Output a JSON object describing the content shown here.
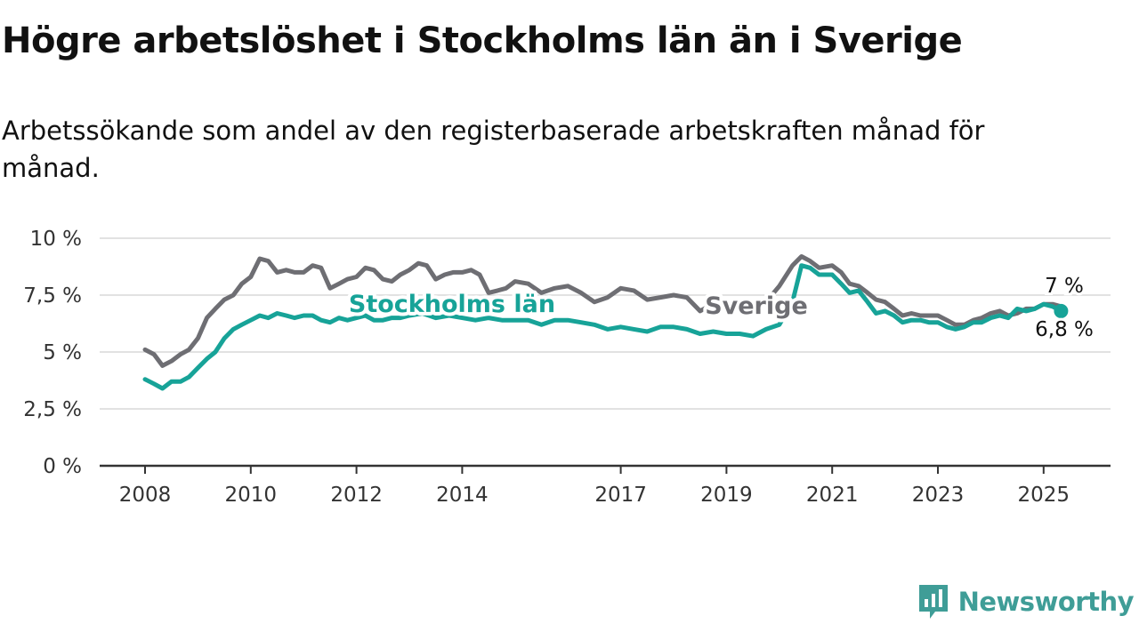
{
  "title": "Högre arbetslöshet i Stockholms län än i Sverige",
  "subtitle": "Arbetssökande som andel av den registerbaserade arbetskraften månad för månad.",
  "brand": {
    "name": "Newsworthy",
    "icon": "newsworthy-logo-icon",
    "color": "#3f9d97"
  },
  "chart_data": {
    "type": "line",
    "ylim": [
      0,
      10
    ],
    "xlim": [
      2008,
      2026.25
    ],
    "yticks": [
      0,
      2.5,
      5,
      7.5,
      10
    ],
    "ytick_labels": [
      "0 %",
      "2,5 %",
      "5 %",
      "7,5 %",
      "10 %"
    ],
    "xticks": [
      2008,
      2010,
      2012,
      2014,
      2017,
      2019,
      2021,
      2023,
      2025
    ],
    "xtick_labels": [
      "2008",
      "2010",
      "2012",
      "2014",
      "2017",
      "2019",
      "2021",
      "2023",
      "2025"
    ],
    "grid": true,
    "series": [
      {
        "name": "Sverige",
        "color": "#6e6e73",
        "end_label": "7 %",
        "points": [
          [
            2008.0,
            5.1
          ],
          [
            2008.17,
            4.9
          ],
          [
            2008.33,
            4.4
          ],
          [
            2008.5,
            4.6
          ],
          [
            2008.67,
            4.9
          ],
          [
            2008.83,
            5.1
          ],
          [
            2009.0,
            5.6
          ],
          [
            2009.17,
            6.5
          ],
          [
            2009.33,
            6.9
          ],
          [
            2009.5,
            7.3
          ],
          [
            2009.67,
            7.5
          ],
          [
            2009.83,
            8.0
          ],
          [
            2010.0,
            8.3
          ],
          [
            2010.17,
            9.1
          ],
          [
            2010.33,
            9.0
          ],
          [
            2010.5,
            8.5
          ],
          [
            2010.67,
            8.6
          ],
          [
            2010.83,
            8.5
          ],
          [
            2011.0,
            8.5
          ],
          [
            2011.17,
            8.8
          ],
          [
            2011.33,
            8.7
          ],
          [
            2011.5,
            7.8
          ],
          [
            2011.67,
            8.0
          ],
          [
            2011.83,
            8.2
          ],
          [
            2012.0,
            8.3
          ],
          [
            2012.17,
            8.7
          ],
          [
            2012.33,
            8.6
          ],
          [
            2012.5,
            8.2
          ],
          [
            2012.67,
            8.1
          ],
          [
            2012.83,
            8.4
          ],
          [
            2013.0,
            8.6
          ],
          [
            2013.17,
            8.9
          ],
          [
            2013.33,
            8.8
          ],
          [
            2013.5,
            8.2
          ],
          [
            2013.67,
            8.4
          ],
          [
            2013.83,
            8.5
          ],
          [
            2014.0,
            8.5
          ],
          [
            2014.17,
            8.6
          ],
          [
            2014.33,
            8.4
          ],
          [
            2014.5,
            7.6
          ],
          [
            2014.67,
            7.7
          ],
          [
            2014.83,
            7.8
          ],
          [
            2015.0,
            8.1
          ],
          [
            2015.25,
            8.0
          ],
          [
            2015.5,
            7.6
          ],
          [
            2015.75,
            7.8
          ],
          [
            2016.0,
            7.9
          ],
          [
            2016.25,
            7.6
          ],
          [
            2016.5,
            7.2
          ],
          [
            2016.75,
            7.4
          ],
          [
            2017.0,
            7.8
          ],
          [
            2017.25,
            7.7
          ],
          [
            2017.5,
            7.3
          ],
          [
            2017.75,
            7.4
          ],
          [
            2018.0,
            7.5
          ],
          [
            2018.25,
            7.4
          ],
          [
            2018.5,
            6.8
          ],
          [
            2018.75,
            7.1
          ],
          [
            2019.0,
            7.2
          ],
          [
            2019.25,
            7.0
          ],
          [
            2019.5,
            6.8
          ],
          [
            2019.75,
            7.2
          ],
          [
            2020.0,
            7.9
          ],
          [
            2020.25,
            8.8
          ],
          [
            2020.42,
            9.2
          ],
          [
            2020.58,
            9.0
          ],
          [
            2020.75,
            8.7
          ],
          [
            2021.0,
            8.8
          ],
          [
            2021.17,
            8.5
          ],
          [
            2021.33,
            8.0
          ],
          [
            2021.5,
            7.9
          ],
          [
            2021.67,
            7.6
          ],
          [
            2021.83,
            7.3
          ],
          [
            2022.0,
            7.2
          ],
          [
            2022.17,
            6.9
          ],
          [
            2022.33,
            6.6
          ],
          [
            2022.5,
            6.7
          ],
          [
            2022.67,
            6.6
          ],
          [
            2022.83,
            6.6
          ],
          [
            2023.0,
            6.6
          ],
          [
            2023.17,
            6.4
          ],
          [
            2023.33,
            6.2
          ],
          [
            2023.5,
            6.2
          ],
          [
            2023.67,
            6.4
          ],
          [
            2023.83,
            6.5
          ],
          [
            2024.0,
            6.7
          ],
          [
            2024.17,
            6.8
          ],
          [
            2024.33,
            6.6
          ],
          [
            2024.5,
            6.7
          ],
          [
            2024.67,
            6.9
          ],
          [
            2024.83,
            6.9
          ],
          [
            2025.0,
            7.1
          ],
          [
            2025.17,
            7.1
          ],
          [
            2025.33,
            7.0
          ]
        ]
      },
      {
        "name": "Stockholms län",
        "color": "#17a398",
        "end_label": "6,8 %",
        "points": [
          [
            2008.0,
            3.8
          ],
          [
            2008.17,
            3.6
          ],
          [
            2008.33,
            3.4
          ],
          [
            2008.5,
            3.7
          ],
          [
            2008.67,
            3.7
          ],
          [
            2008.83,
            3.9
          ],
          [
            2009.0,
            4.3
          ],
          [
            2009.17,
            4.7
          ],
          [
            2009.33,
            5.0
          ],
          [
            2009.5,
            5.6
          ],
          [
            2009.67,
            6.0
          ],
          [
            2009.83,
            6.2
          ],
          [
            2010.0,
            6.4
          ],
          [
            2010.17,
            6.6
          ],
          [
            2010.33,
            6.5
          ],
          [
            2010.5,
            6.7
          ],
          [
            2010.67,
            6.6
          ],
          [
            2010.83,
            6.5
          ],
          [
            2011.0,
            6.6
          ],
          [
            2011.17,
            6.6
          ],
          [
            2011.33,
            6.4
          ],
          [
            2011.5,
            6.3
          ],
          [
            2011.67,
            6.5
          ],
          [
            2011.83,
            6.4
          ],
          [
            2012.0,
            6.5
          ],
          [
            2012.17,
            6.6
          ],
          [
            2012.33,
            6.4
          ],
          [
            2012.5,
            6.4
          ],
          [
            2012.67,
            6.5
          ],
          [
            2012.83,
            6.5
          ],
          [
            2013.0,
            6.6
          ],
          [
            2013.25,
            6.7
          ],
          [
            2013.5,
            6.5
          ],
          [
            2013.75,
            6.6
          ],
          [
            2014.0,
            6.5
          ],
          [
            2014.25,
            6.4
          ],
          [
            2014.5,
            6.5
          ],
          [
            2014.75,
            6.4
          ],
          [
            2015.0,
            6.4
          ],
          [
            2015.25,
            6.4
          ],
          [
            2015.5,
            6.2
          ],
          [
            2015.75,
            6.4
          ],
          [
            2016.0,
            6.4
          ],
          [
            2016.25,
            6.3
          ],
          [
            2016.5,
            6.2
          ],
          [
            2016.75,
            6.0
          ],
          [
            2017.0,
            6.1
          ],
          [
            2017.25,
            6.0
          ],
          [
            2017.5,
            5.9
          ],
          [
            2017.75,
            6.1
          ],
          [
            2018.0,
            6.1
          ],
          [
            2018.25,
            6.0
          ],
          [
            2018.5,
            5.8
          ],
          [
            2018.75,
            5.9
          ],
          [
            2019.0,
            5.8
          ],
          [
            2019.25,
            5.8
          ],
          [
            2019.5,
            5.7
          ],
          [
            2019.75,
            6.0
          ],
          [
            2020.0,
            6.2
          ],
          [
            2020.25,
            7.2
          ],
          [
            2020.42,
            8.8
          ],
          [
            2020.58,
            8.7
          ],
          [
            2020.75,
            8.4
          ],
          [
            2021.0,
            8.4
          ],
          [
            2021.17,
            8.0
          ],
          [
            2021.33,
            7.6
          ],
          [
            2021.5,
            7.7
          ],
          [
            2021.67,
            7.2
          ],
          [
            2021.83,
            6.7
          ],
          [
            2022.0,
            6.8
          ],
          [
            2022.17,
            6.6
          ],
          [
            2022.33,
            6.3
          ],
          [
            2022.5,
            6.4
          ],
          [
            2022.67,
            6.4
          ],
          [
            2022.83,
            6.3
          ],
          [
            2023.0,
            6.3
          ],
          [
            2023.17,
            6.1
          ],
          [
            2023.33,
            6.0
          ],
          [
            2023.5,
            6.1
          ],
          [
            2023.67,
            6.3
          ],
          [
            2023.83,
            6.3
          ],
          [
            2024.0,
            6.5
          ],
          [
            2024.17,
            6.6
          ],
          [
            2024.33,
            6.5
          ],
          [
            2024.5,
            6.9
          ],
          [
            2024.67,
            6.8
          ],
          [
            2024.83,
            6.9
          ],
          [
            2025.0,
            7.1
          ],
          [
            2025.17,
            7.0
          ],
          [
            2025.33,
            6.8
          ]
        ]
      }
    ]
  }
}
